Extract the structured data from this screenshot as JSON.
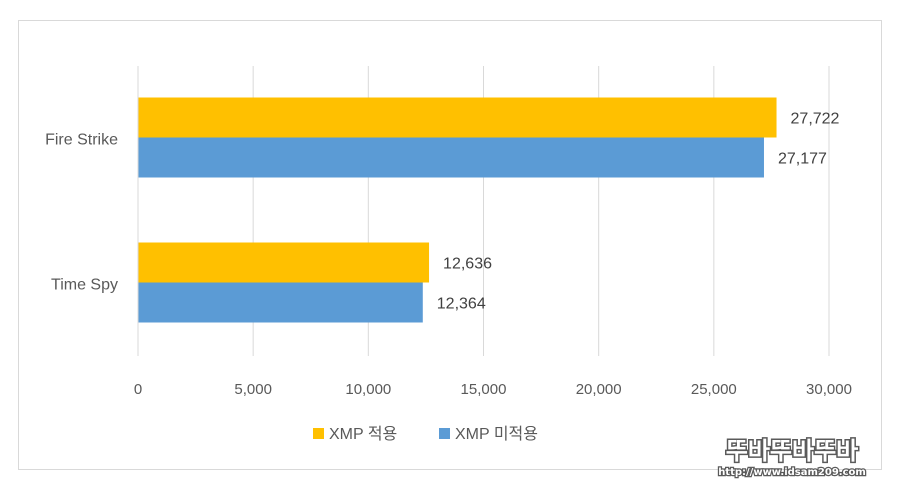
{
  "chart_data": {
    "type": "bar",
    "orientation": "horizontal",
    "categories": [
      "Fire Strike",
      "Time Spy"
    ],
    "series": [
      {
        "name": "XMP 적용",
        "color": "#FFC000",
        "values": [
          27722,
          12636
        ],
        "labels": [
          "27,722",
          "12,636"
        ]
      },
      {
        "name": "XMP 미적용",
        "color": "#5B9BD5",
        "values": [
          27177,
          12364
        ],
        "labels": [
          "27,177",
          "12,364"
        ]
      }
    ],
    "xlim": [
      0,
      30000
    ],
    "xticks": [
      0,
      5000,
      10000,
      15000,
      20000,
      25000,
      30000
    ],
    "xtick_labels": [
      "0",
      "5,000",
      "10,000",
      "15,000",
      "20,000",
      "25,000",
      "30,000"
    ],
    "grid": "vertical",
    "legend_position": "bottom",
    "title": "",
    "xlabel": "",
    "ylabel": ""
  },
  "watermark": {
    "text": "뚜바뚜바뚜바",
    "url": "http://www.idsam209.com",
    "color": "#5a5a5a"
  }
}
